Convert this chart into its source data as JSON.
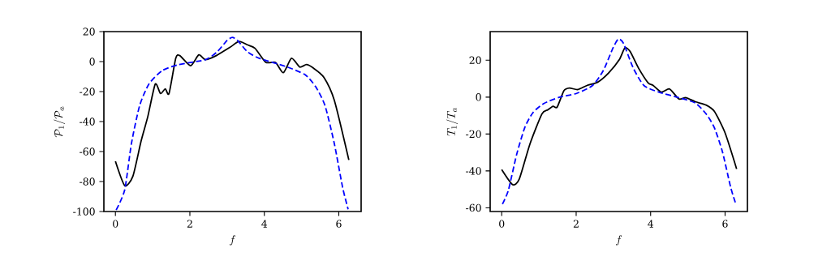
{
  "chart_data": [
    {
      "type": "line",
      "xlabel": "f",
      "ylabel": "\\mathcal{P}_1/\\mathcal{P}_a",
      "xlim": [
        -0.31,
        6.6
      ],
      "ylim": [
        -100,
        20
      ],
      "xticks": [
        0,
        2,
        4,
        6
      ],
      "yticks": [
        -100,
        -80,
        -60,
        -40,
        -20,
        0,
        20
      ],
      "series": [
        {
          "color": "#000000",
          "line_style": "solid",
          "x": [
            0,
            0.25,
            0.47,
            0.69,
            0.87,
            1.07,
            1.21,
            1.34,
            1.44,
            1.62,
            1.73,
            2.02,
            2.24,
            2.42,
            2.71,
            3.07,
            3.32,
            3.54,
            3.75,
            4.04,
            4.3,
            4.51,
            4.73,
            4.95,
            5.13,
            5.31,
            5.6,
            5.88,
            6.27
          ],
          "values": [
            -66.5,
            -82.7,
            -76.4,
            -53,
            -36.7,
            -15,
            -21.3,
            -18.2,
            -21.3,
            2.2,
            4,
            -2.7,
            4.5,
            1.3,
            4,
            9.4,
            13.4,
            11.2,
            8.9,
            -0.5,
            -0.5,
            -7.4,
            2.2,
            -3.6,
            -2,
            -4.2,
            -10.5,
            -25.8,
            -65.6
          ]
        },
        {
          "color": "#0000ff",
          "line_style": "dashed",
          "x": [
            0.02,
            0.25,
            0.43,
            0.65,
            0.9,
            1.26,
            1.7,
            2.42,
            2.74,
            2.99,
            3.14,
            3.29,
            3.54,
            3.86,
            4.58,
            5.09,
            5.38,
            5.63,
            5.88,
            6.1,
            6.25
          ],
          "values": [
            -99,
            -85.5,
            -54.7,
            -29.4,
            -15,
            -6,
            -2,
            1.3,
            6.7,
            13.9,
            16.1,
            13.9,
            6.7,
            2.2,
            -3.3,
            -8.7,
            -16.8,
            -29.4,
            -54.7,
            -83.6,
            -98.5
          ]
        }
      ]
    },
    {
      "type": "line",
      "xlabel": "f",
      "ylabel": "T_1/T_a",
      "xlim": [
        -0.31,
        6.6
      ],
      "ylim": [
        -62,
        35.5
      ],
      "xticks": [
        0,
        2,
        4,
        6
      ],
      "yticks": [
        -60,
        -40,
        -20,
        0,
        20
      ],
      "series": [
        {
          "color": "#000000",
          "line_style": "solid",
          "x": [
            0,
            0.29,
            0.47,
            0.76,
            1.08,
            1.24,
            1.38,
            1.49,
            1.67,
            1.82,
            2.04,
            2.29,
            2.58,
            2.87,
            3.16,
            3.31,
            3.45,
            3.67,
            3.93,
            4.07,
            4.29,
            4.51,
            4.76,
            4.95,
            5.2,
            5.49,
            5.71,
            6.0,
            6.31
          ],
          "values": [
            -39.3,
            -47.4,
            -44.5,
            -25.3,
            -9.1,
            -6.9,
            -5,
            -5.4,
            3.4,
            4.9,
            4.1,
            6.3,
            8.1,
            13,
            20.3,
            26.7,
            24.7,
            15.9,
            7.8,
            6.3,
            2.7,
            4.4,
            -1,
            -0.3,
            -2.5,
            -4.3,
            -7.7,
            -19.4,
            -38.9
          ]
        },
        {
          "color": "#0000ff",
          "line_style": "dashed",
          "x": [
            0.02,
            0.18,
            0.4,
            0.62,
            0.84,
            1.13,
            1.56,
            2.0,
            2.44,
            2.73,
            2.98,
            3.13,
            3.27,
            3.53,
            3.82,
            4.22,
            4.76,
            5.2,
            5.49,
            5.71,
            5.93,
            6.15,
            6.29
          ],
          "values": [
            -58,
            -50.4,
            -31.2,
            -16.5,
            -8.4,
            -3.5,
            0,
            1.9,
            6.3,
            14.4,
            26.2,
            31.4,
            29.2,
            15.9,
            6.3,
            2.7,
            -0.3,
            -3.2,
            -9.1,
            -16.5,
            -29.7,
            -48.9,
            -58
          ]
        }
      ]
    }
  ]
}
